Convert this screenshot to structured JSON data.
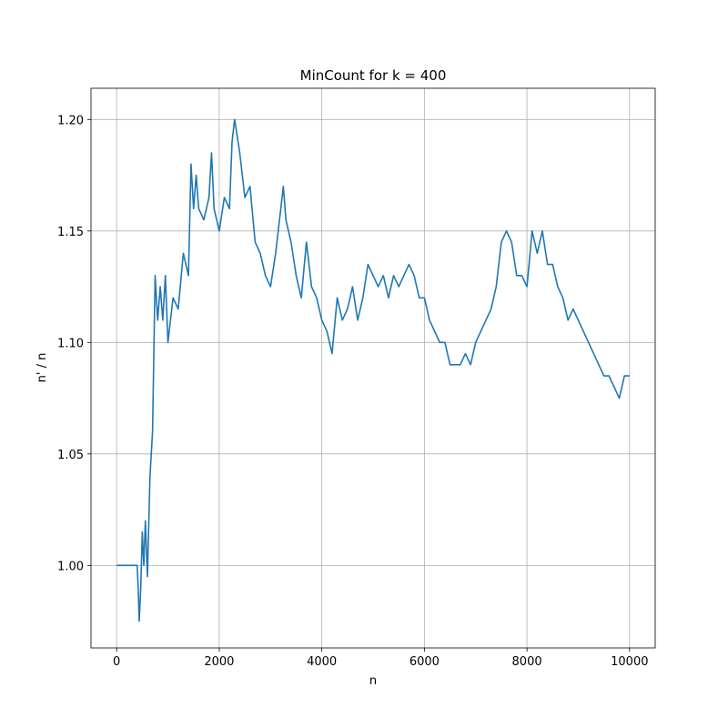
{
  "chart_data": {
    "type": "line",
    "title": "MinCount for k = 400",
    "x_label": "n",
    "y_label": "n' / n",
    "grid": true,
    "xlim": [
      -500,
      10500
    ],
    "ylim": [
      0.963,
      1.214
    ],
    "xticks": [
      0,
      2000,
      4000,
      6000,
      8000,
      10000
    ],
    "yticks": [
      {
        "value": 1,
        "label": "1.00"
      },
      1.05,
      {
        "value": 1.1,
        "label": "1.10"
      },
      1.15,
      {
        "value": 1.2,
        "label": "1.20"
      }
    ],
    "x": [
      0,
      400,
      420,
      440,
      470,
      500,
      530,
      560,
      600,
      650,
      700,
      750,
      800,
      850,
      900,
      950,
      1000,
      1100,
      1200,
      1300,
      1400,
      1450,
      1500,
      1550,
      1600,
      1700,
      1800,
      1850,
      1900,
      2000,
      2100,
      2200,
      2250,
      2300,
      2400,
      2500,
      2600,
      2700,
      2800,
      2900,
      3000,
      3100,
      3200,
      3250,
      3300,
      3400,
      3500,
      3600,
      3700,
      3800,
      3900,
      4000,
      4100,
      4200,
      4300,
      4400,
      4500,
      4600,
      4700,
      4800,
      4900,
      5000,
      5100,
      5200,
      5300,
      5400,
      5500,
      5600,
      5700,
      5800,
      5900,
      6000,
      6100,
      6200,
      6300,
      6400,
      6500,
      6600,
      6700,
      6800,
      6900,
      7000,
      7100,
      7200,
      7300,
      7400,
      7500,
      7600,
      7700,
      7800,
      7900,
      8000,
      8100,
      8200,
      8300,
      8400,
      8500,
      8600,
      8700,
      8800,
      8900,
      9000,
      9100,
      9200,
      9300,
      9400,
      9500,
      9600,
      9700,
      9800,
      9900,
      10000
    ],
    "series": [
      {
        "color": "#1f77b4",
        "values": [
          1.0,
          1.0,
          0.99,
          0.975,
          0.99,
          1.015,
          1.0,
          1.02,
          0.995,
          1.04,
          1.06,
          1.13,
          1.11,
          1.125,
          1.11,
          1.13,
          1.1,
          1.12,
          1.115,
          1.14,
          1.13,
          1.18,
          1.16,
          1.175,
          1.16,
          1.155,
          1.165,
          1.185,
          1.16,
          1.15,
          1.165,
          1.16,
          1.19,
          1.2,
          1.185,
          1.165,
          1.17,
          1.145,
          1.14,
          1.13,
          1.125,
          1.14,
          1.16,
          1.17,
          1.155,
          1.145,
          1.13,
          1.12,
          1.145,
          1.125,
          1.12,
          1.11,
          1.105,
          1.095,
          1.12,
          1.11,
          1.115,
          1.125,
          1.11,
          1.12,
          1.135,
          1.13,
          1.125,
          1.13,
          1.12,
          1.13,
          1.125,
          1.13,
          1.135,
          1.13,
          1.12,
          1.12,
          1.11,
          1.105,
          1.1,
          1.1,
          1.09,
          1.09,
          1.09,
          1.095,
          1.09,
          1.1,
          1.105,
          1.11,
          1.115,
          1.125,
          1.145,
          1.15,
          1.145,
          1.13,
          1.13,
          1.125,
          1.15,
          1.14,
          1.15,
          1.135,
          1.135,
          1.125,
          1.12,
          1.11,
          1.115,
          1.11,
          1.105,
          1.1,
          1.095,
          1.09,
          1.085,
          1.085,
          1.08,
          1.075,
          1.085,
          1.085
        ]
      }
    ]
  }
}
